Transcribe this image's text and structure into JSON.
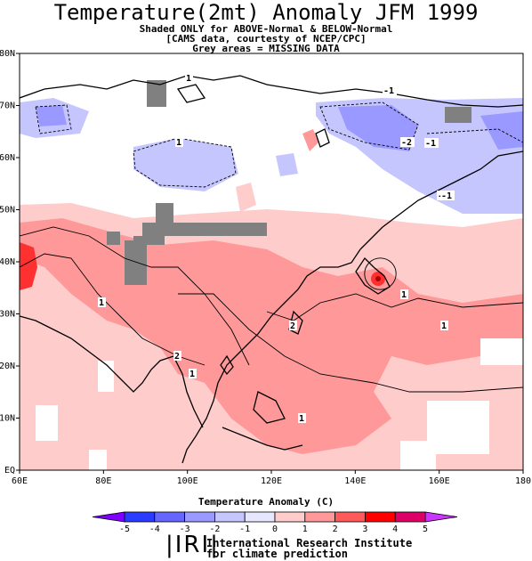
{
  "header": {
    "title": "Temperature(2mt) Anomaly JFM 1999",
    "line1": "Shaded ONLY for ABOVE-Normal & BELOW-Normal",
    "line2": "[CAMS data, courtesty of NCEP/CPC]",
    "line3": "Grey areas = MISSING DATA"
  },
  "map": {
    "lat_ticks": [
      "EQ",
      "10N",
      "20N",
      "30N",
      "40N",
      "50N",
      "60N",
      "70N",
      "80N"
    ],
    "lon_ticks": [
      "60E",
      "80E",
      "100E",
      "120E",
      "140E",
      "160E",
      "180"
    ],
    "lon_range": [
      60,
      180
    ],
    "lat_range": [
      0,
      80
    ],
    "missing_color": "#808080",
    "contour_labels": [
      "1",
      "-1",
      "-2",
      "1",
      "1",
      "2",
      "2",
      "1",
      "1",
      "1",
      "1",
      "-1",
      "-1",
      "-1"
    ]
  },
  "colorbar": {
    "title": "Temperature  Anomaly (C)",
    "ticks": [
      "-5",
      "-4",
      "-3",
      "-2",
      "-1",
      "0",
      "1",
      "2",
      "3",
      "4",
      "5"
    ],
    "colors": [
      "#7f00ff",
      "#2a3cff",
      "#6666ff",
      "#9999ff",
      "#c6c6ff",
      "#e6e6ff",
      "#ffcccc",
      "#ff9999",
      "#ff5a5a",
      "#ff0000",
      "#dd0066",
      "#cc33ff"
    ]
  },
  "footer": {
    "logo": "IRI",
    "inst_line1": "International Research Institute",
    "inst_line2": "for climate prediction"
  }
}
